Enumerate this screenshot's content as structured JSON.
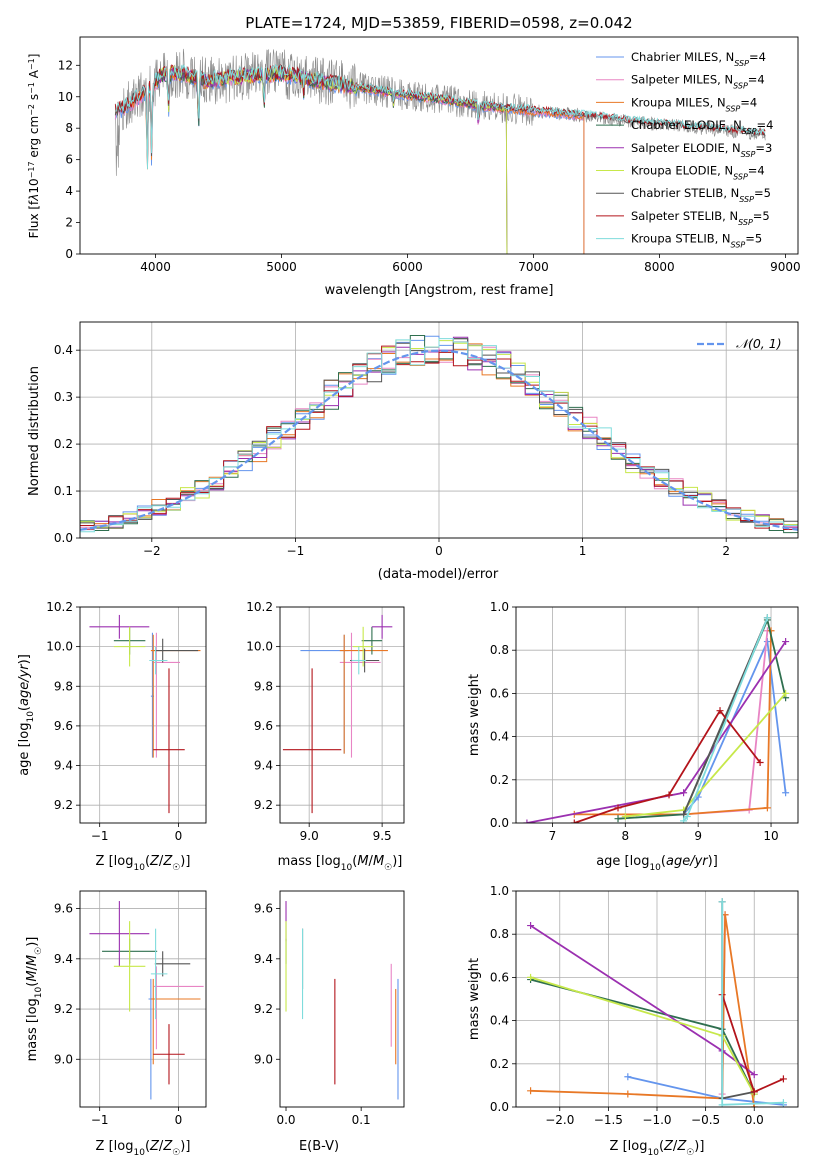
{
  "figure_title": "PLATE=1724, MJD=53859, FIBERID=0598, z=0.042",
  "colors": {
    "Chabrier MILES": "#6495ed",
    "Salpeter MILES": "#e885c4",
    "Kroupa MILES": "#e87826",
    "Chabrier ELODIE": "#2f6f4f",
    "Salpeter ELODIE": "#9b30b0",
    "Kroupa ELODIE": "#c7e84a",
    "Chabrier STELIB": "#555555",
    "Salpeter STELIB": "#b3141b",
    "Kroupa STELIB": "#7fdcdc",
    "data": "#888888",
    "normal": "#6495ed"
  },
  "chart_data": [
    {
      "id": "spectrum",
      "type": "line",
      "xlabel": "wavelength [Angstrom, rest frame]",
      "ylabel": "Flux [fλ10⁻¹⁷ erg cm⁻² s⁻¹ A⁻¹]",
      "xlim": [
        3400,
        9100
      ],
      "ylim": [
        0,
        13.8
      ],
      "xticks": [
        4000,
        5000,
        6000,
        7000,
        8000,
        9000
      ],
      "yticks": [
        0,
        2,
        4,
        6,
        8,
        10,
        12
      ],
      "grid": false,
      "legend_position": "top-right",
      "legend": [
        {
          "name": "Chabrier MILES",
          "nssp": "4"
        },
        {
          "name": "Salpeter MILES",
          "nssp": "4"
        },
        {
          "name": "Kroupa MILES",
          "nssp": "4"
        },
        {
          "name": "Chabrier ELODIE",
          "nssp": "4"
        },
        {
          "name": "Salpeter ELODIE",
          "nssp": "3"
        },
        {
          "name": "Kroupa ELODIE",
          "nssp": "4"
        },
        {
          "name": "Chabrier STELIB",
          "nssp": "5"
        },
        {
          "name": "Salpeter STELIB",
          "nssp": "5"
        },
        {
          "name": "Kroupa STELIB",
          "nssp": "5"
        }
      ],
      "continuum": [
        [
          3680,
          9.0
        ],
        [
          3800,
          9.6
        ],
        [
          3950,
          10.5
        ],
        [
          4050,
          11.4
        ],
        [
          4200,
          11.5
        ],
        [
          4400,
          11.0
        ],
        [
          4700,
          11.3
        ],
        [
          5000,
          11.5
        ],
        [
          5300,
          11.0
        ],
        [
          5600,
          10.6
        ],
        [
          6000,
          10.1
        ],
        [
          6300,
          9.8
        ],
        [
          6600,
          9.4
        ],
        [
          7000,
          9.1
        ],
        [
          7400,
          8.8
        ],
        [
          7800,
          8.4
        ],
        [
          8200,
          8.1
        ],
        [
          8600,
          7.8
        ],
        [
          8840,
          7.6
        ]
      ],
      "data_range": [
        3680,
        8840
      ],
      "model_ranges": {
        "Chabrier MILES": [
          3680,
          7400
        ],
        "Salpeter MILES": [
          3680,
          7400
        ],
        "Kroupa MILES": [
          3680,
          7400
        ],
        "Chabrier ELODIE": [
          4000,
          6790
        ],
        "Salpeter ELODIE": [
          4000,
          6790
        ],
        "Kroupa ELODIE": [
          4000,
          6790
        ],
        "Chabrier STELIB": [
          3680,
          8840
        ],
        "Salpeter STELIB": [
          3680,
          8840
        ],
        "Kroupa STELIB": [
          3680,
          8840
        ]
      }
    },
    {
      "id": "residuals",
      "type": "line",
      "xlabel": "(data-model)/error",
      "ylabel": "Normed distribution",
      "xlim": [
        -2.5,
        2.5
      ],
      "ylim": [
        0,
        0.46
      ],
      "xticks": [
        -2,
        -1,
        0,
        1,
        2
      ],
      "yticks": [
        0.0,
        0.1,
        0.2,
        0.3,
        0.4
      ],
      "grid": true,
      "legend_position": "top-right",
      "legend_label": "𝒩(0, 1)",
      "bin_width": 0.1
    },
    {
      "id": "z_age",
      "type": "scatter",
      "xlabel": "Z [log₁₀(Z/Z☉)]",
      "ylabel": "age  [log₁₀(age/yr)]",
      "xlim": [
        -1.25,
        0.35
      ],
      "ylim": [
        9.11,
        10.2
      ],
      "xticks": [
        -1,
        0
      ],
      "yticks": [
        9.2,
        9.4,
        9.6,
        9.8,
        10.0,
        10.2
      ],
      "grid": true,
      "points": [
        {
          "m": "Chabrier MILES",
          "x": -0.33,
          "xerr": 0.02,
          "y": 9.75,
          "yerr": [
            0.31,
            0.32
          ]
        },
        {
          "m": "Salpeter MILES",
          "x": -0.28,
          "xerr": [
            0.03,
            0.3
          ],
          "y": 9.92,
          "yerr": [
            0.48,
            0.15
          ]
        },
        {
          "m": "Kroupa MILES",
          "x": -0.32,
          "xerr": [
            0.03,
            0.6
          ],
          "y": 9.98,
          "yerr": [
            0.54,
            0.08
          ]
        },
        {
          "m": "Chabrier ELODIE",
          "x": -0.62,
          "xerr": 0.2,
          "y": 10.03,
          "yerr": 0.07
        },
        {
          "m": "Salpeter ELODIE",
          "x": -0.75,
          "xerr": 0.38,
          "y": 10.1,
          "yerr": 0.06
        },
        {
          "m": "Kroupa ELODIE",
          "x": -0.62,
          "xerr": 0.2,
          "y": 10.0,
          "yerr": 0.1
        },
        {
          "m": "Chabrier STELIB",
          "x": -0.2,
          "xerr": [
            0.1,
            0.45
          ],
          "y": 9.98,
          "yerr": 0.06
        },
        {
          "m": "Salpeter STELIB",
          "x": -0.12,
          "xerr": 0.2,
          "y": 9.48,
          "yerr": [
            0.32,
            0.41
          ]
        },
        {
          "m": "Kroupa STELIB",
          "x": -0.29,
          "xerr": [
            0.08,
            0.15
          ],
          "y": 9.93,
          "yerr": 0.07
        }
      ]
    },
    {
      "id": "mass_age",
      "type": "scatter",
      "xlabel": "mass [log₁₀(M/M☉)]",
      "ylabel": "",
      "xlim": [
        8.8,
        9.65
      ],
      "ylim": [
        9.11,
        10.2
      ],
      "xticks": [
        9.0,
        9.5
      ],
      "yticks": [
        9.2,
        9.4,
        9.6,
        9.8,
        10.0,
        10.2
      ],
      "grid": true,
      "points": [
        {
          "m": "Chabrier MILES",
          "x": 9.24,
          "xerr": [
            0.3,
            0.03
          ],
          "y": 9.98,
          "yerr": [
            0.52,
            0.08
          ]
        },
        {
          "m": "Salpeter MILES",
          "x": 9.29,
          "xerr": [
            0.08,
            0.2
          ],
          "y": 9.92,
          "yerr": [
            0.48,
            0.15
          ]
        },
        {
          "m": "Kroupa MILES",
          "x": 9.24,
          "xerr": [
            0.03,
            0.3
          ],
          "y": 9.98,
          "yerr": [
            0.52,
            0.08
          ]
        },
        {
          "m": "Chabrier ELODIE",
          "x": 9.43,
          "xerr": 0.07,
          "y": 10.03,
          "yerr": 0.07
        },
        {
          "m": "Salpeter ELODIE",
          "x": 9.5,
          "xerr": 0.07,
          "y": 10.1,
          "yerr": 0.06
        },
        {
          "m": "Kroupa ELODIE",
          "x": 9.37,
          "xerr": 0.07,
          "y": 10.0,
          "yerr": 0.1
        },
        {
          "m": "Chabrier STELIB",
          "x": 9.38,
          "xerr": 0.1,
          "y": 9.93,
          "yerr": 0.06
        },
        {
          "m": "Salpeter STELIB",
          "x": 9.02,
          "xerr": 0.2,
          "y": 9.48,
          "yerr": [
            0.32,
            0.41
          ]
        },
        {
          "m": "Kroupa STELIB",
          "x": 9.34,
          "xerr": 0.05,
          "y": 9.93,
          "yerr": 0.07
        }
      ]
    },
    {
      "id": "age_weight",
      "type": "line",
      "xlabel": "age  [log₁₀(age/yr)]",
      "ylabel": "mass weight",
      "xlim": [
        6.5,
        10.37
      ],
      "ylim": [
        0,
        1
      ],
      "xticks": [
        7,
        8,
        9,
        10
      ],
      "yticks": [
        0.0,
        0.2,
        0.4,
        0.6,
        0.8,
        1.0
      ],
      "grid": true,
      "series": [
        {
          "m": "Chabrier MILES",
          "x": [
            8.8,
            9.0,
            9.95,
            10.2
          ],
          "y": [
            0.04,
            0.12,
            0.84,
            0.14
          ]
        },
        {
          "m": "Salpeter MILES",
          "x": [
            8.8,
            9.7,
            9.95
          ],
          "y": [
            0.04,
            0.06,
            0.89
          ]
        },
        {
          "m": "Kroupa MILES",
          "x": [
            7.3,
            8.8,
            9.95,
            10.0
          ],
          "y": [
            0.04,
            0.04,
            0.07,
            0.89
          ]
        },
        {
          "m": "Chabrier ELODIE",
          "x": [
            7.9,
            8.8,
            9.95,
            10.2
          ],
          "y": [
            0.02,
            0.04,
            0.94,
            0.58
          ]
        },
        {
          "m": "Salpeter ELODIE",
          "x": [
            6.65,
            8.8,
            10.2
          ],
          "y": [
            0.0,
            0.14,
            0.84
          ]
        },
        {
          "m": "Kroupa ELODIE",
          "x": [
            8.0,
            8.8,
            10.2
          ],
          "y": [
            0.03,
            0.06,
            0.6
          ]
        },
        {
          "m": "Chabrier STELIB",
          "x": [
            8.8,
            9.95
          ],
          "y": [
            0.04,
            0.95
          ]
        },
        {
          "m": "Salpeter STELIB",
          "x": [
            7.3,
            7.9,
            8.6,
            9.3,
            9.85
          ],
          "y": [
            0.0,
            0.07,
            0.13,
            0.52,
            0.28
          ]
        },
        {
          "m": "Kroupa STELIB",
          "x": [
            8.8,
            8.85,
            9.95
          ],
          "y": [
            0.01,
            0.03,
            0.95
          ]
        }
      ]
    },
    {
      "id": "z_mass",
      "type": "scatter",
      "xlabel": "Z [log₁₀(Z/Z☉)]",
      "ylabel": "mass [log₁₀(M/M☉)]",
      "xlim": [
        -1.25,
        0.35
      ],
      "ylim": [
        8.81,
        9.67
      ],
      "xticks": [
        -1,
        0
      ],
      "yticks": [
        9.0,
        9.2,
        9.4,
        9.6
      ],
      "grid": true,
      "points": [
        {
          "m": "Chabrier MILES",
          "x": -0.35,
          "xerr": [
            0.03,
            0.6
          ],
          "y": 9.24,
          "yerr": [
            0.4,
            0.08
          ]
        },
        {
          "m": "Salpeter MILES",
          "x": -0.28,
          "xerr": [
            0.03,
            0.6
          ],
          "y": 9.29,
          "yerr": [
            0.25,
            0.08
          ]
        },
        {
          "m": "Kroupa MILES",
          "x": -0.32,
          "xerr": [
            0.03,
            0.6
          ],
          "y": 9.24,
          "yerr": [
            0.26,
            0.08
          ]
        },
        {
          "m": "Chabrier ELODIE",
          "x": -0.62,
          "xerr": 0.35,
          "y": 9.43,
          "yerr": 0.05
        },
        {
          "m": "Salpeter ELODIE",
          "x": -0.75,
          "xerr": 0.38,
          "y": 9.5,
          "yerr": 0.13
        },
        {
          "m": "Kroupa ELODIE",
          "x": -0.62,
          "xerr": 0.2,
          "y": 9.37,
          "yerr": 0.18
        },
        {
          "m": "Chabrier STELIB",
          "x": -0.2,
          "xerr": [
            0.1,
            0.35
          ],
          "y": 9.38,
          "yerr": 0.05
        },
        {
          "m": "Salpeter STELIB",
          "x": -0.12,
          "xerr": 0.2,
          "y": 9.02,
          "yerr": 0.12
        },
        {
          "m": "Kroupa STELIB",
          "x": -0.29,
          "xerr": [
            0.06,
            0.15
          ],
          "y": 9.34,
          "yerr": 0.18
        }
      ]
    },
    {
      "id": "ebv_mass",
      "type": "scatter",
      "xlabel": "E(B-V)",
      "ylabel": "",
      "xlim": [
        -0.008,
        0.157
      ],
      "ylim": [
        8.81,
        9.67
      ],
      "xticks": [
        0.0,
        0.1
      ],
      "yticks": [
        9.0,
        9.2,
        9.4,
        9.6
      ],
      "grid": false,
      "points": [
        {
          "m": "Chabrier MILES",
          "x": 0.149,
          "xerr": 0,
          "y": 9.04,
          "yerr": [
            0.2,
            0.28
          ]
        },
        {
          "m": "Salpeter MILES",
          "x": 0.14,
          "xerr": 0,
          "y": 9.2,
          "yerr": [
            0.15,
            0.18
          ]
        },
        {
          "m": "Kroupa MILES",
          "x": 0.146,
          "xerr": 0,
          "y": 9.12,
          "yerr": [
            0.14,
            0.16
          ]
        },
        {
          "m": "Chabrier ELODIE",
          "x": 0.0,
          "xerr": 0,
          "y": 9.43,
          "yerr": 0.05
        },
        {
          "m": "Salpeter ELODIE",
          "x": 0.0,
          "xerr": 0,
          "y": 9.55,
          "yerr": 0.08
        },
        {
          "m": "Kroupa ELODIE",
          "x": 0.0,
          "xerr": 0,
          "y": 9.37,
          "yerr": 0.18
        },
        {
          "m": "Chabrier STELIB",
          "x": 0.022,
          "xerr": 0,
          "y": 9.4,
          "yerr": 0.12
        },
        {
          "m": "Salpeter STELIB",
          "x": 0.065,
          "xerr": 0,
          "y": 9.11,
          "yerr": [
            0.21,
            0.21
          ]
        },
        {
          "m": "Kroupa STELIB",
          "x": 0.022,
          "xerr": 0,
          "y": 9.34,
          "yerr": 0.18
        }
      ]
    },
    {
      "id": "z_weight",
      "type": "line",
      "xlabel": "Z [log₁₀(Z/Z☉)]",
      "ylabel": "mass weight",
      "xlim": [
        -2.45,
        0.45
      ],
      "ylim": [
        0,
        1
      ],
      "xticks": [
        -2.0,
        -1.5,
        -1.0,
        -0.5,
        0.0
      ],
      "yticks": [
        0.0,
        0.2,
        0.4,
        0.6,
        0.8,
        1.0
      ],
      "grid": true,
      "series": [
        {
          "m": "Chabrier MILES",
          "x": [
            -1.3,
            -0.33,
            0.3
          ],
          "y": [
            0.14,
            0.04,
            0.01
          ]
        },
        {
          "m": "Salpeter MILES",
          "x": [
            -0.33,
            -0.3
          ],
          "y": [
            0.06,
            0.89
          ]
        },
        {
          "m": "Kroupa MILES",
          "x": [
            -2.3,
            -1.3,
            -0.33,
            -0.3,
            0.0
          ],
          "y": [
            0.075,
            0.06,
            0.04,
            0.89,
            0.0
          ]
        },
        {
          "m": "Chabrier ELODIE",
          "x": [
            -2.3,
            -0.33,
            0.0
          ],
          "y": [
            0.59,
            0.36,
            0.06
          ]
        },
        {
          "m": "Salpeter ELODIE",
          "x": [
            -2.3,
            -0.33,
            0.0
          ],
          "y": [
            0.84,
            0.26,
            0.15
          ]
        },
        {
          "m": "Kroupa ELODIE",
          "x": [
            -2.3,
            -0.33,
            0.0
          ],
          "y": [
            0.6,
            0.33,
            0.06
          ]
        },
        {
          "m": "Chabrier STELIB",
          "x": [
            -0.33,
            -0.33,
            0.0
          ],
          "y": [
            0.95,
            0.04,
            0.07
          ]
        },
        {
          "m": "Salpeter STELIB",
          "x": [
            -0.33,
            0.0,
            0.3
          ],
          "y": [
            0.52,
            0.07,
            0.13
          ]
        },
        {
          "m": "Kroupa STELIB",
          "x": [
            -0.33,
            -0.33,
            0.3
          ],
          "y": [
            0.95,
            0.01,
            0.02
          ]
        }
      ]
    }
  ]
}
